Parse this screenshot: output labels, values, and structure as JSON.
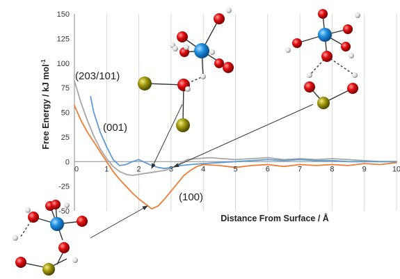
{
  "chart_data": {
    "type": "line",
    "title": "",
    "xlabel": "Distance From Surface / Å",
    "ylabel": "Free Energy / kJ mol",
    "ylabel_superscript": "-1",
    "xlim": [
      0,
      10
    ],
    "ylim": [
      -50,
      150
    ],
    "x_ticks": [
      "0",
      "1",
      "2",
      "3",
      "4",
      "5",
      "6",
      "7",
      "8",
      "9",
      "10"
    ],
    "y_ticks": [
      "-50",
      "-25",
      "0",
      "25",
      "50",
      "75",
      "100",
      "125",
      "150"
    ],
    "grid": "vertical",
    "series": [
      {
        "name": "(203/101)",
        "color": "#a6a6a6",
        "x": [
          0,
          0.2,
          0.4,
          0.6,
          0.8,
          1.0,
          1.2,
          1.4,
          1.6,
          1.8,
          2.0,
          2.2,
          2.4,
          2.6,
          2.8,
          3.0,
          3.2,
          3.5,
          3.8,
          4.2,
          4.6,
          5.0,
          5.5,
          6.0,
          6.5,
          7.0,
          7.5,
          8.0,
          8.5,
          9.0,
          9.5,
          10.0
        ],
        "y": [
          82,
          60,
          42,
          26,
          13,
          3,
          -5,
          -10,
          -13,
          -14,
          -13,
          -12,
          -11,
          -10,
          -9,
          -7,
          -3,
          2,
          3,
          4,
          3,
          2,
          3,
          4,
          2,
          3,
          2,
          3,
          2,
          1,
          0,
          0
        ]
      },
      {
        "name": "(001)",
        "color": "#5b9bd5",
        "x": [
          0.5,
          0.6,
          0.8,
          1.0,
          1.2,
          1.4,
          1.6,
          1.8,
          2.0,
          2.2,
          2.4,
          2.6,
          2.8,
          3.0,
          3.3,
          3.6,
          4.0,
          4.5,
          5.0,
          5.5,
          6.0,
          6.5,
          7.0,
          7.5,
          8.0,
          8.5,
          9.0,
          9.5,
          10.0
        ],
        "y": [
          66,
          50,
          30,
          15,
          2,
          -4,
          -3,
          0,
          2,
          -1,
          -4,
          -6,
          -7,
          -6,
          -4,
          -3,
          -2,
          -1,
          0,
          1,
          2,
          1,
          2,
          1,
          1,
          0,
          0,
          0,
          0
        ]
      },
      {
        "name": "(100)",
        "color": "#ed7d31",
        "x": [
          0,
          0.2,
          0.4,
          0.6,
          0.8,
          1.0,
          1.2,
          1.4,
          1.6,
          1.8,
          2.0,
          2.2,
          2.4,
          2.6,
          2.8,
          3.0,
          3.2,
          3.4,
          3.6,
          3.8,
          4.0,
          4.5,
          5.0,
          5.5,
          6.0,
          6.5,
          7.0,
          7.5,
          8.0,
          8.5,
          9.0,
          9.5,
          10.0
        ],
        "y": [
          57,
          42,
          30,
          20,
          10,
          0,
          -10,
          -18,
          -25,
          -32,
          -38,
          -43,
          -48,
          -45,
          -38,
          -30,
          -22,
          -14,
          -9,
          -5,
          -3,
          -4,
          -6,
          -4,
          -3,
          -5,
          -3,
          -4,
          -3,
          -4,
          -2,
          -3,
          -1
        ]
      }
    ],
    "annotations": [
      "(203/101)",
      "(001)",
      "(100)"
    ],
    "legend": "none"
  },
  "atom_colors": {
    "oxygen": "#e01010",
    "hydrogen": "#e8e8e8",
    "uranium": "#1e8fe0",
    "iron": "#a29a10"
  }
}
